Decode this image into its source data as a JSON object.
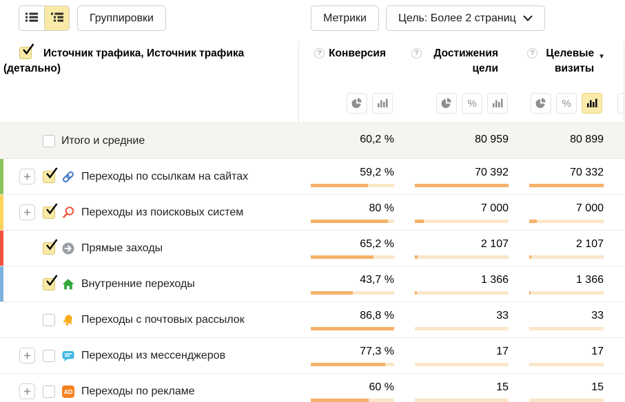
{
  "toolbar": {
    "view_toggle": {
      "active": "tree",
      "options": [
        "list",
        "tree"
      ]
    },
    "groupings_label": "Группировки",
    "metrics_label": "Метрики",
    "goal_label": "Цель: Более 2 страниц"
  },
  "icons": {
    "list_view": "flat-list",
    "tree_view": "tree-list",
    "help": "?",
    "sort_desc": "▼",
    "chevron_down": "∨",
    "pie": "pie-chart",
    "percent": "%",
    "bars": "bar-chart",
    "expand": "+"
  },
  "colors": {
    "accent_yellow": "#f8e9a6",
    "bar_fill": "#f5b268",
    "bar_track": "#fae6c9",
    "summary_row_bg": "#f4f4f1"
  },
  "table": {
    "header": {
      "checkbox_checked": true,
      "dimension_title": "Источник трафика, Источник трафика (детально)",
      "columns": [
        {
          "label": "Конверсия",
          "toggles": [
            "pie",
            "bars"
          ],
          "active_toggle": null,
          "sorted": null
        },
        {
          "label": "Достижения цели",
          "toggles": [
            "pie",
            "percent",
            "bars"
          ],
          "active_toggle": null,
          "sorted": null
        },
        {
          "label": "Целевые визиты",
          "toggles": [
            "pie",
            "percent",
            "bars"
          ],
          "active_toggle": "bars",
          "sorted": "desc"
        }
      ]
    },
    "rows": [
      {
        "label": "Итого и средние",
        "summary": true,
        "checked": false,
        "expandable": false,
        "icon": null,
        "stripe": null,
        "conversion": "60,2 %",
        "goals": "80 959",
        "visits": "80 899",
        "bars": null
      },
      {
        "label": "Переходы по ссылкам на сайтах",
        "summary": false,
        "checked": true,
        "expandable": true,
        "icon": "link",
        "stripe": "#8cc15c",
        "conversion": "59,2 %",
        "goals": "70 392",
        "visits": "70 332",
        "bars": {
          "conversion": 68.2,
          "goals": 100,
          "visits": 100
        }
      },
      {
        "label": "Переходы из поисковых систем",
        "summary": false,
        "checked": true,
        "expandable": true,
        "icon": "search",
        "stripe": "#fcd45c",
        "conversion": "80 %",
        "goals": "7 000",
        "visits": "7 000",
        "bars": {
          "conversion": 92.2,
          "goals": 9.9,
          "visits": 10
        }
      },
      {
        "label": "Прямые заходы",
        "summary": false,
        "checked": true,
        "expandable": false,
        "icon": "direct",
        "stripe": "#f4503c",
        "conversion": "65,2 %",
        "goals": "2 107",
        "visits": "2 107",
        "bars": {
          "conversion": 75.1,
          "goals": 3,
          "visits": 3
        }
      },
      {
        "label": "Внутренние переходы",
        "summary": false,
        "checked": true,
        "expandable": false,
        "icon": "home",
        "stripe": "#7eb2e0",
        "conversion": "43,7 %",
        "goals": "1 366",
        "visits": "1 366",
        "bars": {
          "conversion": 50.3,
          "goals": 1.9,
          "visits": 1.9
        }
      },
      {
        "label": "Переходы с почтовых рассылок",
        "summary": false,
        "checked": false,
        "expandable": false,
        "icon": "bell",
        "stripe": null,
        "conversion": "86,8 %",
        "goals": "33",
        "visits": "33",
        "bars": {
          "conversion": 100,
          "goals": 0,
          "visits": 0
        }
      },
      {
        "label": "Переходы из мессенджеров",
        "summary": false,
        "checked": false,
        "expandable": true,
        "icon": "messenger",
        "stripe": null,
        "conversion": "77,3 %",
        "goals": "17",
        "visits": "17",
        "bars": {
          "conversion": 89.1,
          "goals": 0,
          "visits": 0
        }
      },
      {
        "label": "Переходы по рекламе",
        "summary": false,
        "checked": false,
        "expandable": true,
        "icon": "ad",
        "stripe": null,
        "conversion": "60 %",
        "goals": "15",
        "visits": "15",
        "bars": {
          "conversion": 69.1,
          "goals": 0,
          "visits": 0
        }
      }
    ]
  }
}
